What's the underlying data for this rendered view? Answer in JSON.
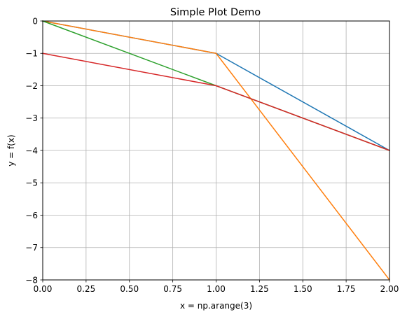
{
  "chart_data": {
    "type": "line",
    "title": "Simple Plot Demo",
    "xlabel": "x = np.arange(3)",
    "ylabel": "y = f(x)",
    "xlim": [
      0,
      2
    ],
    "ylim": [
      -8,
      0
    ],
    "grid": true,
    "x": [
      0,
      1,
      2
    ],
    "xticks": [
      "0.00",
      "0.25",
      "0.50",
      "0.75",
      "1.00",
      "1.25",
      "1.50",
      "1.75",
      "2.00"
    ],
    "yticks": [
      "0",
      "−1",
      "−2",
      "−3",
      "−4",
      "−5",
      "−6",
      "−7",
      "−8"
    ],
    "series": [
      {
        "values": [
          0,
          -1,
          -4
        ],
        "color": "#1f77b4"
      },
      {
        "values": [
          0,
          -1,
          -8
        ],
        "color": "#ff7f0e"
      },
      {
        "values": [
          0,
          -2,
          -4
        ],
        "color": "#2ca02c"
      },
      {
        "values": [
          -1,
          -2,
          -4
        ],
        "color": "#d62728"
      }
    ]
  }
}
